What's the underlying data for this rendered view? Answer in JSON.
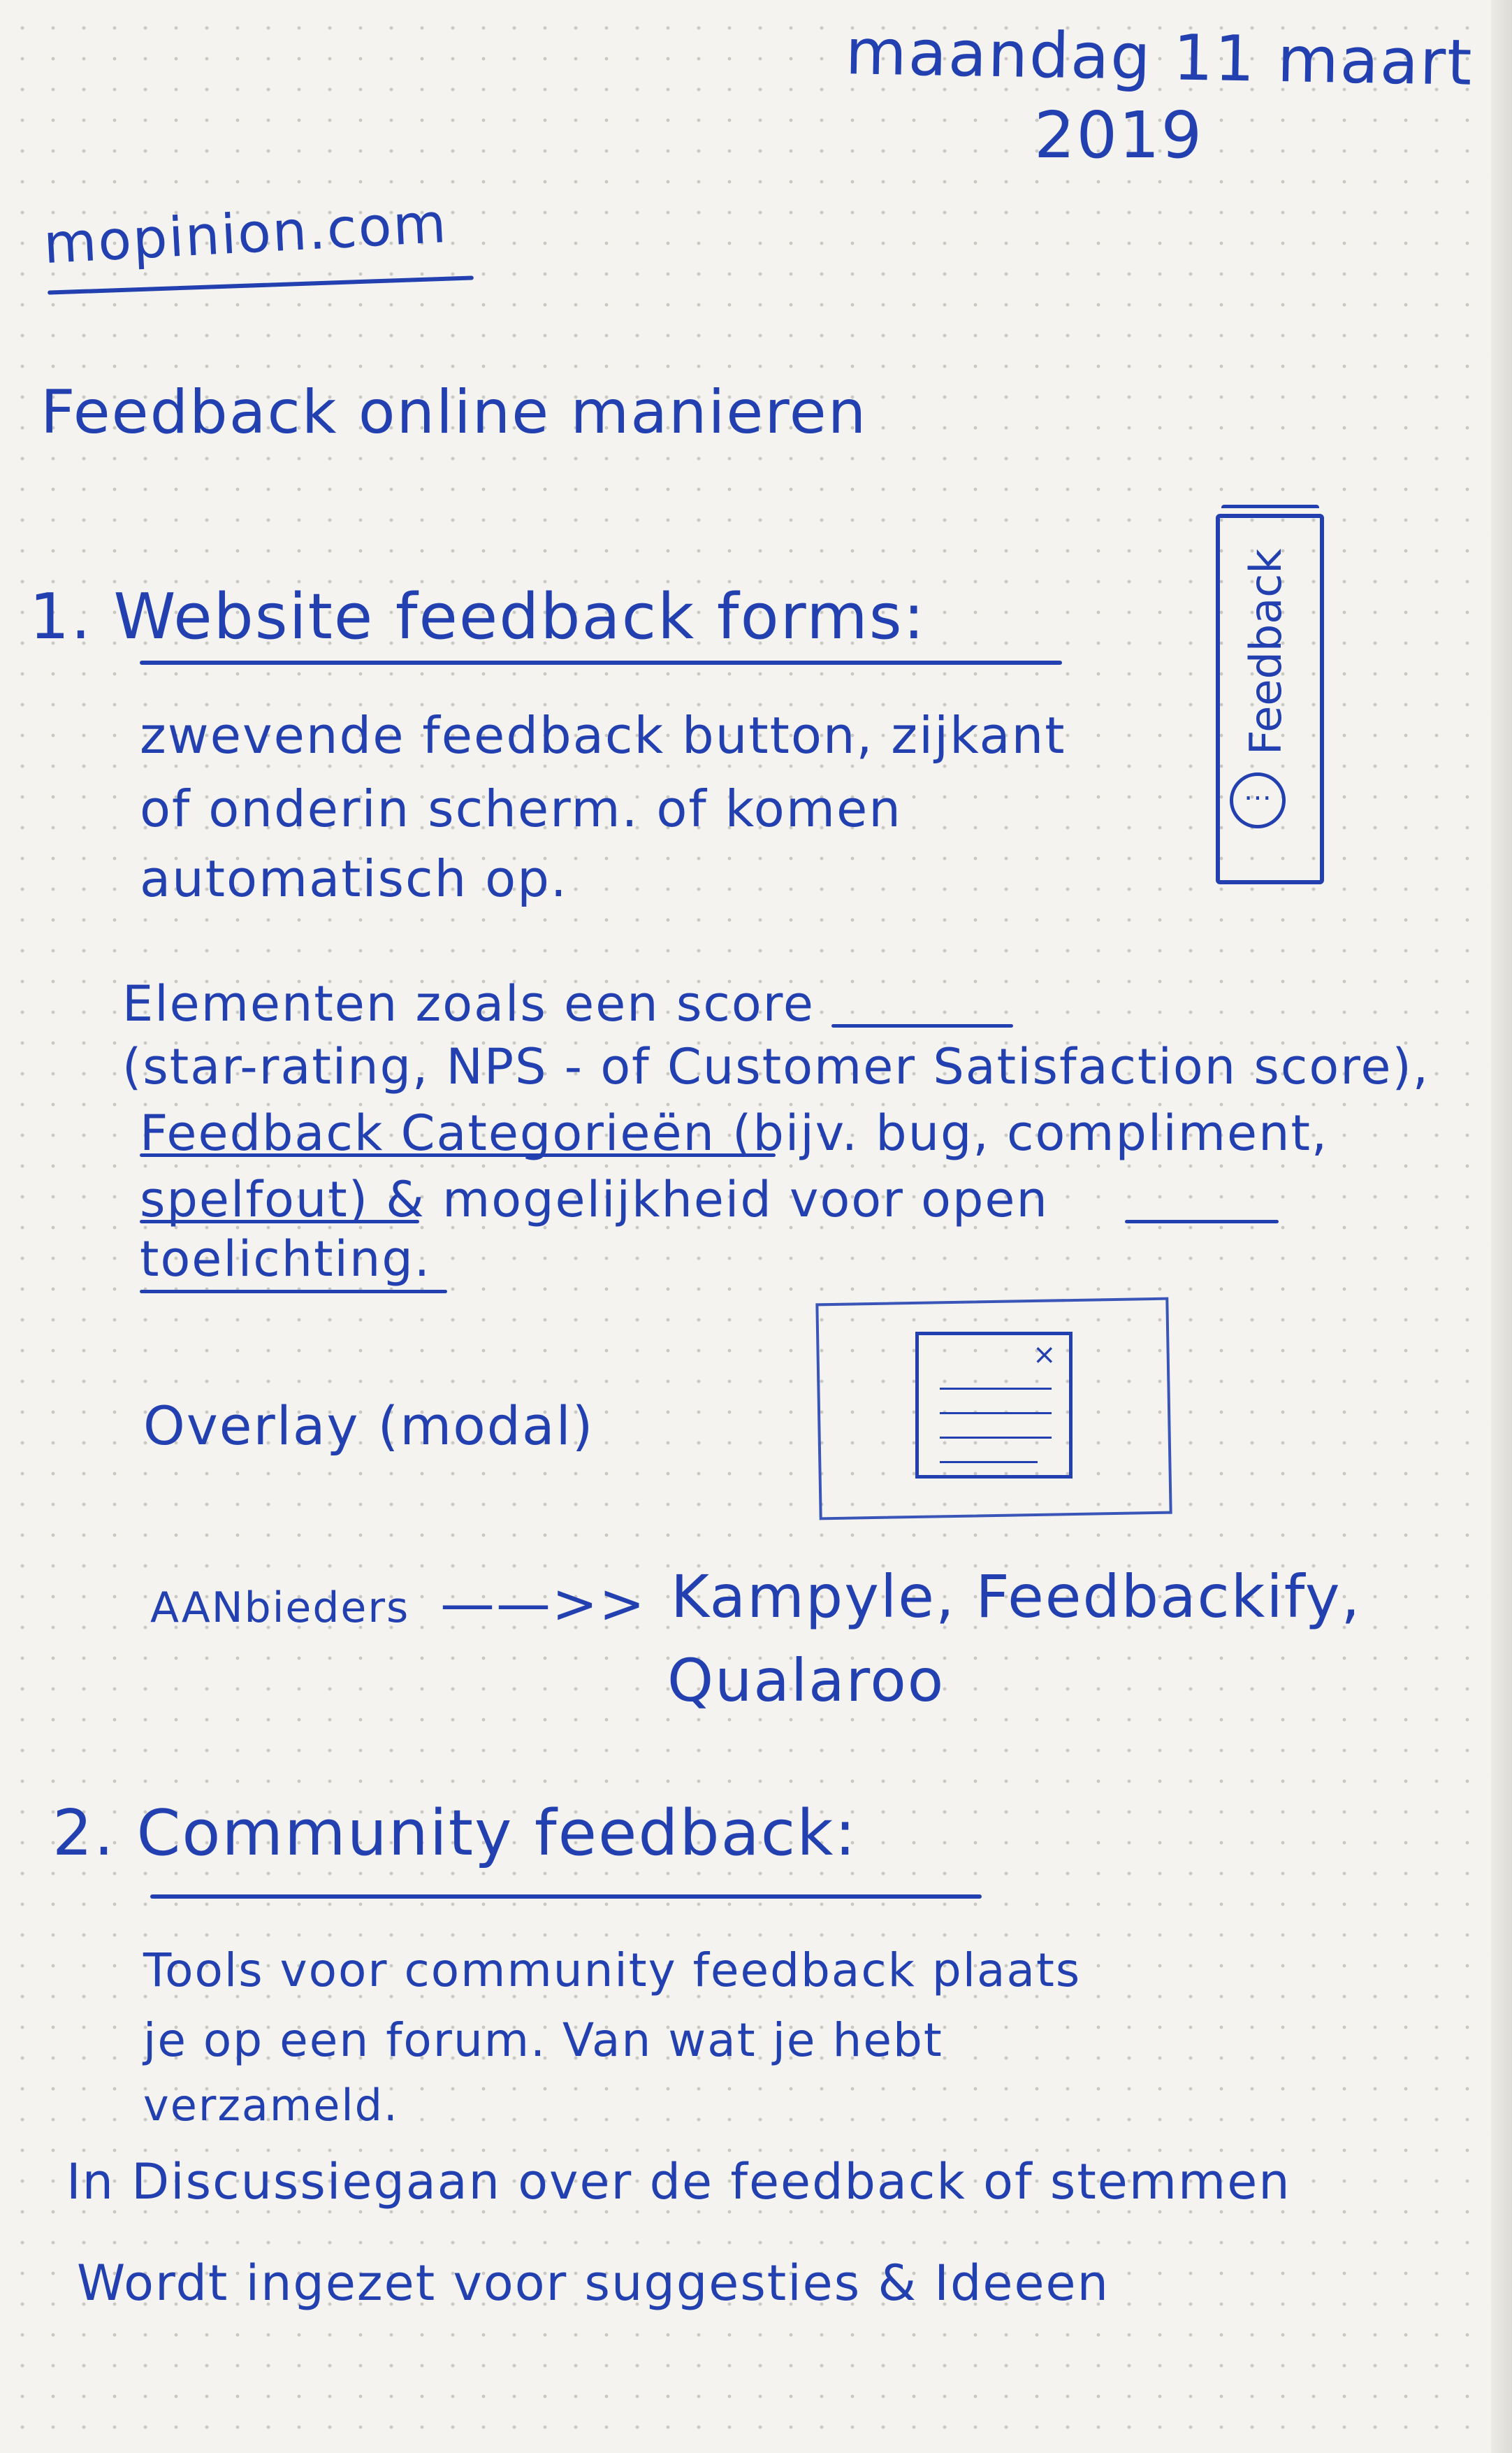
{
  "date": {
    "line1": "maandag 11 maart",
    "line2": "2019"
  },
  "site": "mopinion.com",
  "title": "Feedback online manieren",
  "section1": {
    "heading": "1. Website feedback forms:",
    "para1": [
      "zwevende feedback button, zijkant",
      "of onderin scherm. of komen",
      "automatisch op."
    ],
    "para2": [
      "Elementen zoals een score",
      "(star-rating, NPS - of Customer Satisfaction score),",
      "Feedback Categorieën (bijv. bug, compliment,",
      "spelfout) & mogelijkheid voor open",
      "toelichting."
    ],
    "overlay_label": "Overlay (modal)",
    "providers_label": "AANbieders",
    "providers_arrow": "——>>",
    "providers_line1": "Kampyle, Feedbackify,",
    "providers_line2": "Qualaroo"
  },
  "sketch_tab_label": "Feedback",
  "section2": {
    "heading": "2. Community feedback:",
    "para1": [
      "Tools voor community feedback plaats",
      "je op een forum. Van wat je hebt",
      "verzameld."
    ],
    "para2": [
      "In Discussiegaan over de feedback of stemmen",
      "Wordt ingezet voor suggesties & Ideeen"
    ]
  }
}
